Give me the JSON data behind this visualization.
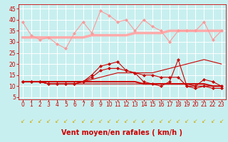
{
  "background_color": "#c8efef",
  "grid_color": "#ffffff",
  "xlabel": "Vent moyen/en rafales ( km/h )",
  "xlabel_color": "#cc0000",
  "xlabel_fontsize": 7,
  "tick_color": "#cc0000",
  "x_ticks": [
    0,
    1,
    2,
    3,
    4,
    5,
    6,
    7,
    8,
    9,
    10,
    11,
    12,
    13,
    14,
    15,
    16,
    17,
    18,
    19,
    20,
    21,
    22,
    23
  ],
  "y_ticks": [
    5,
    10,
    15,
    20,
    25,
    30,
    35,
    40,
    45
  ],
  "ylim": [
    4,
    47
  ],
  "xlim": [
    -0.5,
    23.5
  ],
  "series": [
    {
      "y": [
        39,
        33,
        31,
        32,
        29,
        27,
        34,
        39,
        34,
        44,
        42,
        39,
        40,
        35,
        40,
        37,
        35,
        30,
        35,
        35,
        35,
        39,
        31,
        35
      ],
      "color": "#ff9999",
      "linewidth": 0.8,
      "marker": "D",
      "markersize": 2.0,
      "zorder": 3
    },
    {
      "y": [
        32,
        32,
        32,
        32,
        32,
        32,
        32,
        32,
        33,
        33,
        33,
        33,
        33,
        34,
        34,
        34,
        34,
        35,
        35,
        35,
        35,
        35,
        35,
        35
      ],
      "color": "#ffaaaa",
      "linewidth": 2.5,
      "marker": null,
      "markersize": 0,
      "zorder": 2
    },
    {
      "y": [
        12,
        12,
        12,
        11,
        11,
        11,
        11,
        12,
        15,
        19,
        20,
        21,
        17,
        16,
        12,
        11,
        10,
        12,
        22,
        10,
        10,
        13,
        12,
        10
      ],
      "color": "#cc0000",
      "linewidth": 0.8,
      "marker": "D",
      "markersize": 2.0,
      "zorder": 4
    },
    {
      "y": [
        12,
        12,
        12,
        12,
        12,
        12,
        12,
        12,
        12,
        12,
        12,
        12,
        12,
        12,
        11,
        11,
        11,
        11,
        11,
        11,
        11,
        11,
        10,
        10
      ],
      "color": "#cc0000",
      "linewidth": 1.5,
      "marker": null,
      "markersize": 0,
      "zorder": 2
    },
    {
      "y": [
        12,
        12,
        12,
        11,
        11,
        11,
        11,
        12,
        14,
        17,
        18,
        18,
        17,
        16,
        15,
        15,
        14,
        14,
        14,
        10,
        9,
        10,
        9,
        9
      ],
      "color": "#cc0000",
      "linewidth": 0.8,
      "marker": "D",
      "markersize": 2.0,
      "zorder": 3
    },
    {
      "y": [
        12,
        12,
        12,
        12,
        12,
        12,
        12,
        12,
        13,
        14,
        15,
        16,
        16,
        16,
        16,
        16,
        17,
        18,
        19,
        20,
        21,
        22,
        21,
        20
      ],
      "color": "#cc0000",
      "linewidth": 0.8,
      "marker": null,
      "markersize": 0,
      "zorder": 2
    },
    {
      "y": [
        12,
        12,
        12,
        11,
        11,
        11,
        11,
        11,
        11,
        11,
        11,
        11,
        11,
        11,
        11,
        11,
        11,
        11,
        11,
        11,
        10,
        10,
        10,
        10
      ],
      "color": "#cc0000",
      "linewidth": 0.8,
      "marker": null,
      "markersize": 0,
      "zorder": 2
    }
  ],
  "arrow_color": "#ccaa00",
  "arrow_char": "↙",
  "arrow_fontsize": 5.5
}
